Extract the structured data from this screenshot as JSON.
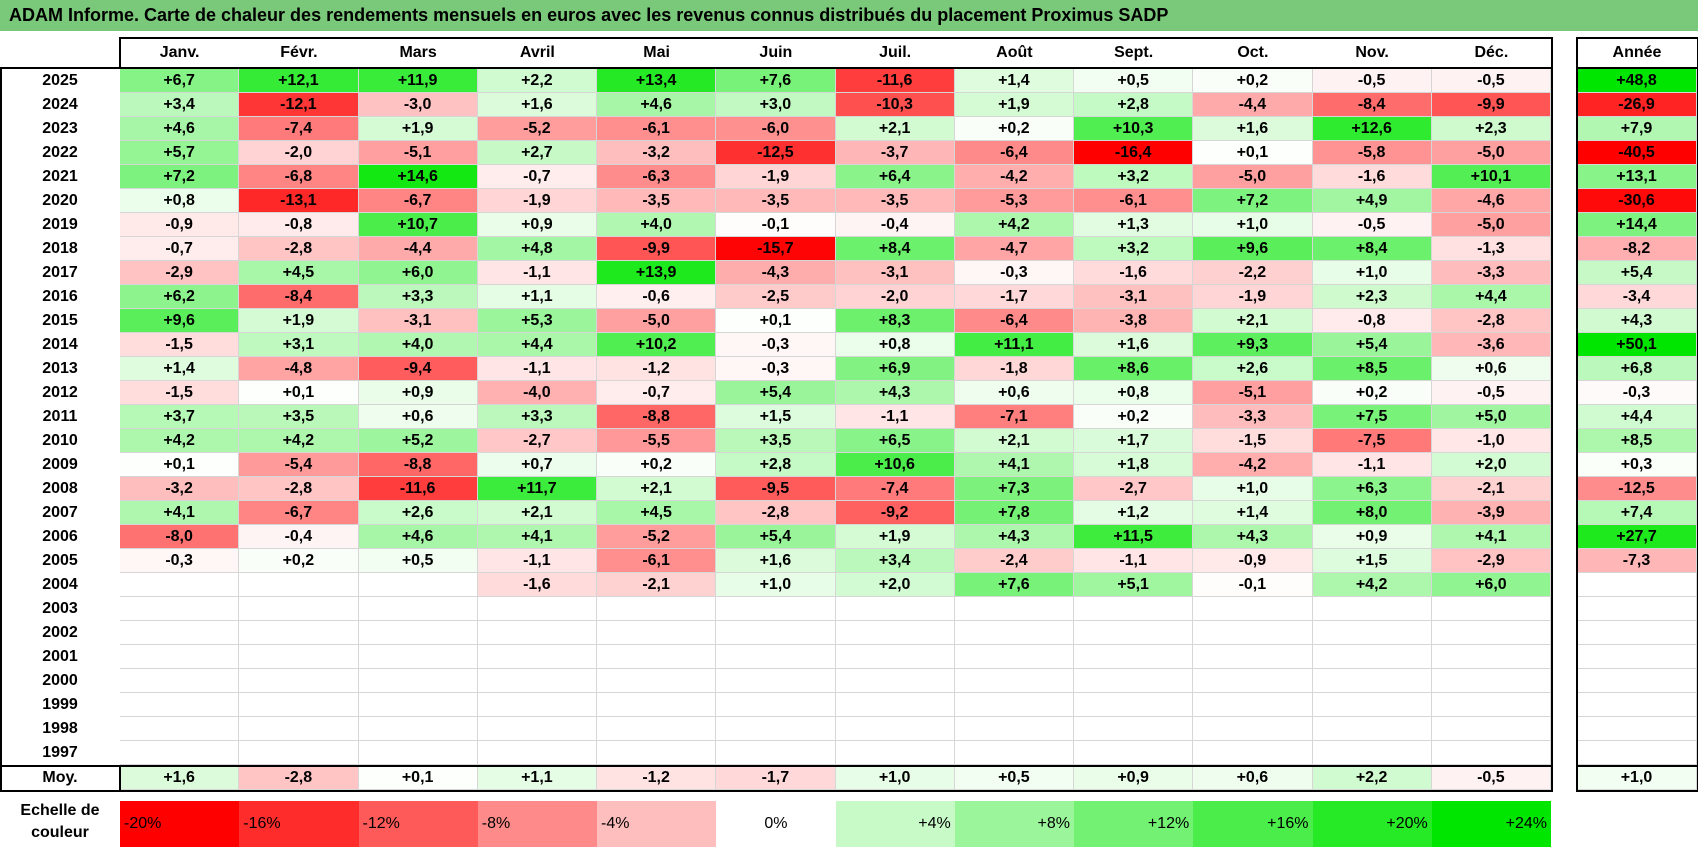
{
  "title": "ADAM Informe. Carte de chaleur des rendements mensuels en euros avec les revenus connus distribués du placement Proximus SADP",
  "months": [
    "Janv.",
    "Févr.",
    "Mars",
    "Avril",
    "Mai",
    "Juin",
    "Juil.",
    "Août",
    "Sept.",
    "Oct.",
    "Nov.",
    "Déc."
  ],
  "annee_header": "Année",
  "avg_label": "Moy.",
  "scale_label_line1": "Echelle de",
  "scale_label_line2": "couleur",
  "colors": {
    "title_bar": "#7ac87a",
    "neg_max": "#ff0000",
    "neutral": "#ffffff",
    "pos_max": "#00e600",
    "border": "#000000"
  },
  "chart_data": {
    "type": "heatmap",
    "title": "ADAM Informe. Carte de chaleur des rendements mensuels en euros avec les revenus connus distribués du placement Proximus SADP",
    "x": [
      "Janv.",
      "Févr.",
      "Mars",
      "Avril",
      "Mai",
      "Juin",
      "Juil.",
      "Août",
      "Sept.",
      "Oct.",
      "Nov.",
      "Déc."
    ],
    "rows": [
      {
        "year": "2025",
        "values": [
          "+6,7",
          "+12,1",
          "+11,9",
          "+2,2",
          "+13,4",
          "+7,6",
          "-11,6",
          "+1,4",
          "+0,5",
          "+0,2",
          "-0,5",
          "-0,5"
        ],
        "annee": "+48,8"
      },
      {
        "year": "2024",
        "values": [
          "+3,4",
          "-12,1",
          "-3,0",
          "+1,6",
          "+4,6",
          "+3,0",
          "-10,3",
          "+1,9",
          "+2,8",
          "-4,4",
          "-8,4",
          "-9,9"
        ],
        "annee": "-26,9"
      },
      {
        "year": "2023",
        "values": [
          "+4,6",
          "-7,4",
          "+1,9",
          "-5,2",
          "-6,1",
          "-6,0",
          "+2,1",
          "+0,2",
          "+10,3",
          "+1,6",
          "+12,6",
          "+2,3"
        ],
        "annee": "+7,9"
      },
      {
        "year": "2022",
        "values": [
          "+5,7",
          "-2,0",
          "-5,1",
          "+2,7",
          "-3,2",
          "-12,5",
          "-3,7",
          "-6,4",
          "-16,4",
          "+0,1",
          "-5,8",
          "-5,0"
        ],
        "annee": "-40,5"
      },
      {
        "year": "2021",
        "values": [
          "+7,2",
          "-6,8",
          "+14,6",
          "-0,7",
          "-6,3",
          "-1,9",
          "+6,4",
          "-4,2",
          "+3,2",
          "-5,0",
          "-1,6",
          "+10,1"
        ],
        "annee": "+13,1"
      },
      {
        "year": "2020",
        "values": [
          "+0,8",
          "-13,1",
          "-6,7",
          "-1,9",
          "-3,5",
          "-3,5",
          "-3,5",
          "-5,3",
          "-6,1",
          "+7,2",
          "+4,9",
          "-4,6"
        ],
        "annee": "-30,6"
      },
      {
        "year": "2019",
        "values": [
          "-0,9",
          "-0,8",
          "+10,7",
          "+0,9",
          "+4,0",
          "-0,1",
          "-0,4",
          "+4,2",
          "+1,3",
          "+1,0",
          "-0,5",
          "-5,0"
        ],
        "annee": "+14,4"
      },
      {
        "year": "2018",
        "values": [
          "-0,7",
          "-2,8",
          "-4,4",
          "+4,8",
          "-9,9",
          "-15,7",
          "+8,4",
          "-4,7",
          "+3,2",
          "+9,6",
          "+8,4",
          "-1,3"
        ],
        "annee": "-8,2"
      },
      {
        "year": "2017",
        "values": [
          "-2,9",
          "+4,5",
          "+6,0",
          "-1,1",
          "+13,9",
          "-4,3",
          "-3,1",
          "-0,3",
          "-1,6",
          "-2,2",
          "+1,0",
          "-3,3"
        ],
        "annee": "+5,4"
      },
      {
        "year": "2016",
        "values": [
          "+6,2",
          "-8,4",
          "+3,3",
          "+1,1",
          "-0,6",
          "-2,5",
          "-2,0",
          "-1,7",
          "-3,1",
          "-1,9",
          "+2,3",
          "+4,4"
        ],
        "annee": "-3,4"
      },
      {
        "year": "2015",
        "values": [
          "+9,6",
          "+1,9",
          "-3,1",
          "+5,3",
          "-5,0",
          "+0,1",
          "+8,3",
          "-6,4",
          "-3,8",
          "+2,1",
          "-0,8",
          "-2,8"
        ],
        "annee": "+4,3"
      },
      {
        "year": "2014",
        "values": [
          "-1,5",
          "+3,1",
          "+4,0",
          "+4,4",
          "+10,2",
          "-0,3",
          "+0,8",
          "+11,1",
          "+1,6",
          "+9,3",
          "+5,4",
          "-3,6"
        ],
        "annee": "+50,1"
      },
      {
        "year": "2013",
        "values": [
          "+1,4",
          "-4,8",
          "-9,4",
          "-1,1",
          "-1,2",
          "-0,3",
          "+6,9",
          "-1,8",
          "+8,6",
          "+2,6",
          "+8,5",
          "+0,6"
        ],
        "annee": "+6,8"
      },
      {
        "year": "2012",
        "values": [
          "-1,5",
          "+0,1",
          "+0,9",
          "-4,0",
          "-0,7",
          "+5,4",
          "+4,3",
          "+0,6",
          "+0,8",
          "-5,1",
          "+0,2",
          "-0,5"
        ],
        "annee": "-0,3"
      },
      {
        "year": "2011",
        "values": [
          "+3,7",
          "+3,5",
          "+0,6",
          "+3,3",
          "-8,8",
          "+1,5",
          "-1,1",
          "-7,1",
          "+0,2",
          "-3,3",
          "+7,5",
          "+5,0"
        ],
        "annee": "+4,4"
      },
      {
        "year": "2010",
        "values": [
          "+4,2",
          "+4,2",
          "+5,2",
          "-2,7",
          "-5,5",
          "+3,5",
          "+6,5",
          "+2,1",
          "+1,7",
          "-1,5",
          "-7,5",
          "-1,0"
        ],
        "annee": "+8,5"
      },
      {
        "year": "2009",
        "values": [
          "+0,1",
          "-5,4",
          "-8,8",
          "+0,7",
          "+0,2",
          "+2,8",
          "+10,6",
          "+4,1",
          "+1,8",
          "-4,2",
          "-1,1",
          "+2,0"
        ],
        "annee": "+0,3"
      },
      {
        "year": "2008",
        "values": [
          "-3,2",
          "-2,8",
          "-11,6",
          "+11,7",
          "+2,1",
          "-9,5",
          "-7,4",
          "+7,3",
          "-2,7",
          "+1,0",
          "+6,3",
          "-2,1"
        ],
        "annee": "-12,5"
      },
      {
        "year": "2007",
        "values": [
          "+4,1",
          "-6,7",
          "+2,6",
          "+2,1",
          "+4,5",
          "-2,8",
          "-9,2",
          "+7,8",
          "+1,2",
          "+1,4",
          "+8,0",
          "-3,9"
        ],
        "annee": "+7,4"
      },
      {
        "year": "2006",
        "values": [
          "-8,0",
          "-0,4",
          "+4,6",
          "+4,1",
          "-5,2",
          "+5,4",
          "+1,9",
          "+4,3",
          "+11,5",
          "+4,3",
          "+0,9",
          "+4,1"
        ],
        "annee": "+27,7"
      },
      {
        "year": "2005",
        "values": [
          "-0,3",
          "+0,2",
          "+0,5",
          "-1,1",
          "-6,1",
          "+1,6",
          "+3,4",
          "-2,4",
          "-1,1",
          "-0,9",
          "+1,5",
          "-2,9"
        ],
        "annee": "-7,3"
      },
      {
        "year": "2004",
        "values": [
          "",
          "",
          "",
          "-1,6",
          "-2,1",
          "+1,0",
          "+2,0",
          "+7,6",
          "+5,1",
          "-0,1",
          "+4,2",
          "+6,0"
        ],
        "annee": ""
      },
      {
        "year": "2003",
        "values": [
          "",
          "",
          "",
          "",
          "",
          "",
          "",
          "",
          "",
          "",
          "",
          ""
        ],
        "annee": ""
      },
      {
        "year": "2002",
        "values": [
          "",
          "",
          "",
          "",
          "",
          "",
          "",
          "",
          "",
          "",
          "",
          ""
        ],
        "annee": ""
      },
      {
        "year": "2001",
        "values": [
          "",
          "",
          "",
          "",
          "",
          "",
          "",
          "",
          "",
          "",
          "",
          ""
        ],
        "annee": ""
      },
      {
        "year": "2000",
        "values": [
          "",
          "",
          "",
          "",
          "",
          "",
          "",
          "",
          "",
          "",
          "",
          ""
        ],
        "annee": ""
      },
      {
        "year": "1999",
        "values": [
          "",
          "",
          "",
          "",
          "",
          "",
          "",
          "",
          "",
          "",
          "",
          ""
        ],
        "annee": ""
      },
      {
        "year": "1998",
        "values": [
          "",
          "",
          "",
          "",
          "",
          "",
          "",
          "",
          "",
          "",
          "",
          ""
        ],
        "annee": ""
      },
      {
        "year": "1997",
        "values": [
          "",
          "",
          "",
          "",
          "",
          "",
          "",
          "",
          "",
          "",
          "",
          ""
        ],
        "annee": ""
      }
    ],
    "averages": [
      "+1,6",
      "-2,8",
      "+0,1",
      "+1,1",
      "-1,2",
      "-1,7",
      "+1,0",
      "+0,5",
      "+0,9",
      "+0,6",
      "+2,2",
      "-0,5"
    ],
    "average_annee": "+1,0",
    "color_scale": [
      "-20%",
      "-16%",
      "-12%",
      "-8%",
      "-4%",
      "0%",
      "+4%",
      "+8%",
      "+12%",
      "+16%",
      "+20%",
      "+24%"
    ]
  }
}
